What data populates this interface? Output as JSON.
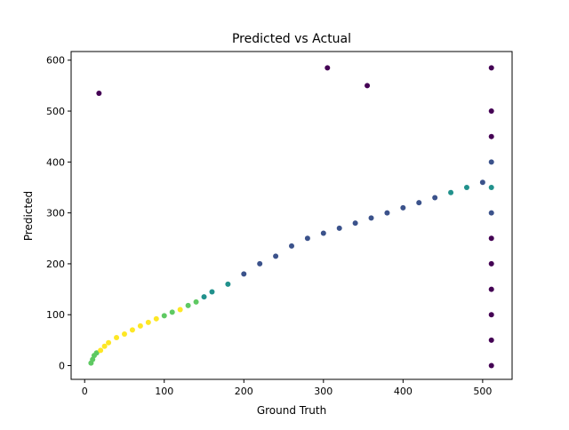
{
  "chart_data": {
    "type": "scatter",
    "title": "Predicted vs Actual",
    "xlabel": "Ground Truth",
    "ylabel": "Predicted",
    "xlim": [
      -17,
      537
    ],
    "ylim": [
      -27,
      617
    ],
    "xticks": [
      0,
      100,
      200,
      300,
      400,
      500
    ],
    "yticks": [
      0,
      100,
      200,
      300,
      400,
      500,
      600
    ],
    "xtick_labels": [
      "0",
      "100",
      "200",
      "300",
      "400",
      "500"
    ],
    "ytick_labels": [
      "0",
      "100",
      "200",
      "300",
      "400",
      "500",
      "600"
    ],
    "grid": false,
    "legend": "none",
    "colormap": "viridis",
    "colors": {
      "low_density": "#440154",
      "mid_low": "#3b528b",
      "mid": "#21918c",
      "mid_high": "#5ec962",
      "high_density": "#fde725"
    },
    "series": [
      {
        "x": [
          8,
          10,
          12,
          15,
          20,
          25,
          30,
          40,
          50,
          60,
          70,
          80,
          90,
          100,
          110,
          120,
          130,
          140,
          150,
          160,
          180,
          200,
          220,
          240,
          260,
          280,
          300,
          320,
          340,
          360,
          380,
          400,
          420,
          440,
          460,
          480,
          500,
          511,
          511,
          511,
          511,
          511,
          511,
          511,
          511,
          511,
          511,
          511,
          511,
          18,
          305,
          355
        ],
        "y": [
          5,
          12,
          20,
          25,
          30,
          38,
          45,
          55,
          62,
          70,
          78,
          85,
          92,
          98,
          105,
          110,
          118,
          125,
          135,
          145,
          160,
          180,
          200,
          215,
          235,
          250,
          260,
          270,
          280,
          290,
          300,
          310,
          320,
          330,
          340,
          350,
          360,
          0,
          50,
          100,
          150,
          200,
          250,
          300,
          350,
          400,
          450,
          500,
          585,
          535,
          585,
          550
        ]
      }
    ]
  }
}
